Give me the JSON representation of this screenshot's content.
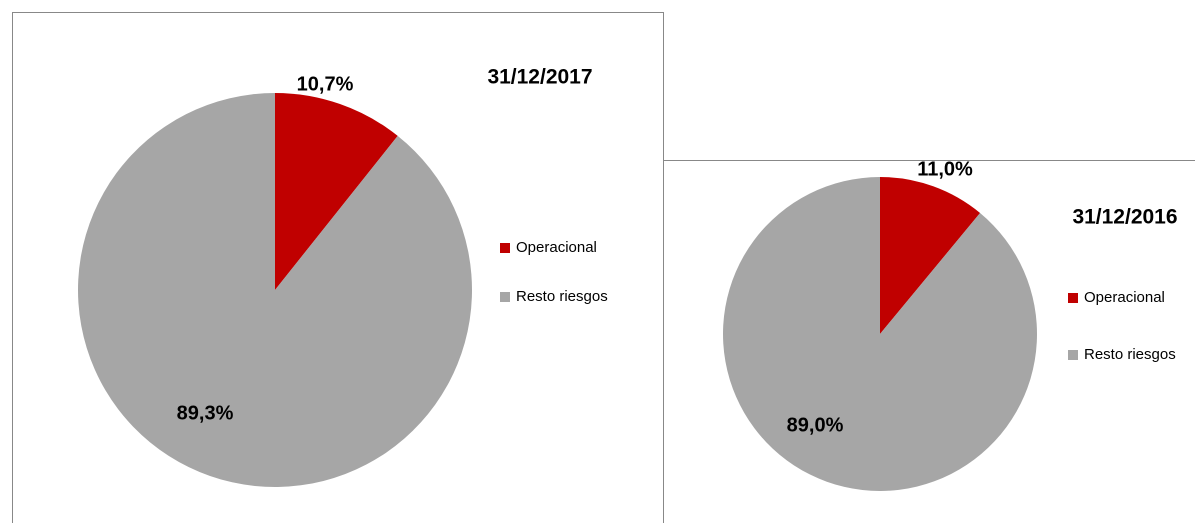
{
  "chart_data": [
    {
      "type": "pie",
      "title": "31/12/2017",
      "categories": [
        "Operacional",
        "Resto riesgos"
      ],
      "values": [
        10.7,
        89.3
      ],
      "value_labels": [
        "10,7%",
        "89,3%"
      ],
      "colors": [
        "#c00000",
        "#a6a6a6"
      ]
    },
    {
      "type": "pie",
      "title": "31/12/2016",
      "categories": [
        "Operacional",
        "Resto riesgos"
      ],
      "values": [
        11.0,
        89.0
      ],
      "value_labels": [
        "11,0%",
        "89,0%"
      ],
      "colors": [
        "#c00000",
        "#a6a6a6"
      ]
    }
  ]
}
